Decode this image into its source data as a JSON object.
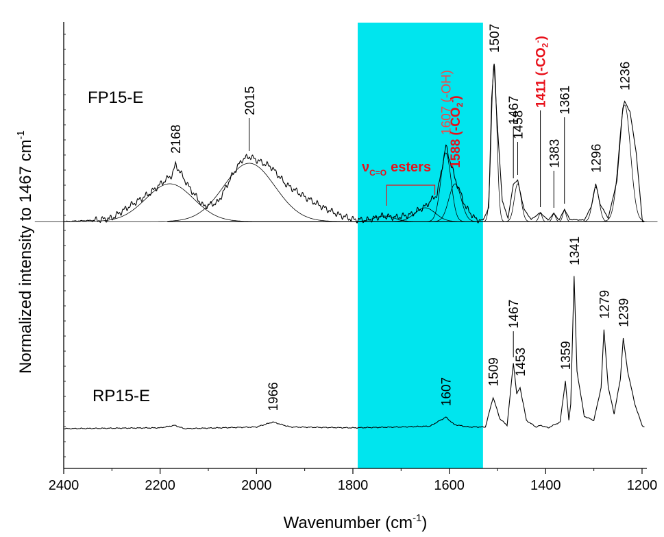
{
  "chart_data": {
    "type": "line",
    "xlabel": "Wavenumber (cm",
    "xlabel_sup": "-1",
    "xlabel_tail": ")",
    "ylabel": "Normalized intensity to 1467 cm",
    "ylabel_sup": "-1",
    "xlim": [
      2400,
      1190
    ],
    "x_ticks": [
      2400,
      2200,
      2000,
      1800,
      1600,
      1400,
      1200
    ],
    "x_tick_labels": [
      "2400",
      "2200",
      "2000",
      "1800",
      "1600",
      "1400",
      "1200"
    ],
    "y_tick_labels": false,
    "highlight_band": {
      "from": 1790,
      "to": 1530,
      "color": "#00e5ee"
    },
    "colors": {
      "line": "#000000",
      "accent": "#e8101a",
      "accent_light": "#f04848"
    },
    "series": [
      {
        "name": "FP15-E",
        "baseline": 0,
        "points": [
          [
            2400,
            0
          ],
          [
            2330,
            0.02
          ],
          [
            2300,
            0.05
          ],
          [
            2260,
            0.24
          ],
          [
            2220,
            0.42
          ],
          [
            2190,
            0.6
          ],
          [
            2175,
            0.68
          ],
          [
            2168,
            0.83
          ],
          [
            2160,
            0.74
          ],
          [
            2140,
            0.5
          ],
          [
            2110,
            0.22
          ],
          [
            2080,
            0.28
          ],
          [
            2050,
            0.68
          ],
          [
            2030,
            0.9
          ],
          [
            2015,
            0.95
          ],
          [
            1995,
            0.88
          ],
          [
            1970,
            0.8
          ],
          [
            1940,
            0.55
          ],
          [
            1900,
            0.36
          ],
          [
            1860,
            0.2
          ],
          [
            1830,
            0.1
          ],
          [
            1800,
            0.03
          ],
          [
            1770,
            0.02
          ],
          [
            1740,
            0.08
          ],
          [
            1710,
            0.06
          ],
          [
            1680,
            0.1
          ],
          [
            1650,
            0.22
          ],
          [
            1625,
            0.4
          ],
          [
            1607,
            1.1
          ],
          [
            1595,
            0.8
          ],
          [
            1588,
            0.62
          ],
          [
            1565,
            0.2
          ],
          [
            1545,
            0.03
          ],
          [
            1530,
            0.02
          ],
          [
            1518,
            0.2
          ],
          [
            1512,
            1.8
          ],
          [
            1507,
            2.3
          ],
          [
            1502,
            1.6
          ],
          [
            1490,
            0.3
          ],
          [
            1478,
            0.05
          ],
          [
            1467,
            0.55
          ],
          [
            1458,
            0.6
          ],
          [
            1445,
            0.18
          ],
          [
            1430,
            0.03
          ],
          [
            1411,
            0.13
          ],
          [
            1395,
            0.02
          ],
          [
            1383,
            0.12
          ],
          [
            1372,
            0.02
          ],
          [
            1361,
            0.18
          ],
          [
            1350,
            0.03
          ],
          [
            1320,
            0.02
          ],
          [
            1305,
            0.22
          ],
          [
            1296,
            0.55
          ],
          [
            1287,
            0.25
          ],
          [
            1270,
            0.05
          ],
          [
            1252,
            0.6
          ],
          [
            1240,
            1.65
          ],
          [
            1236,
            1.75
          ],
          [
            1225,
            1.6
          ],
          [
            1212,
            1.0
          ],
          [
            1200,
            0.05
          ]
        ],
        "fit_components": [
          {
            "center": 2180,
            "height": 0.55,
            "width": 70
          },
          {
            "center": 2015,
            "height": 0.85,
            "width": 75
          },
          {
            "center": 1735,
            "height": 0.08,
            "width": 30
          },
          {
            "center": 1650,
            "height": 0.2,
            "width": 30
          },
          {
            "center": 1607,
            "height": 1.0,
            "width": 15
          },
          {
            "center": 1588,
            "height": 0.55,
            "width": 18
          },
          {
            "center": 1507,
            "height": 2.3,
            "width": 8
          },
          {
            "center": 1458,
            "height": 0.55,
            "width": 10
          },
          {
            "center": 1411,
            "height": 0.12,
            "width": 5
          },
          {
            "center": 1383,
            "height": 0.11,
            "width": 5
          },
          {
            "center": 1361,
            "height": 0.16,
            "width": 5
          },
          {
            "center": 1296,
            "height": 0.5,
            "width": 10
          },
          {
            "center": 1236,
            "height": 1.7,
            "width": 17
          }
        ]
      },
      {
        "name": "RP15-E",
        "baseline": 0,
        "points": [
          [
            2400,
            0
          ],
          [
            2200,
            0.01
          ],
          [
            2170,
            0.04
          ],
          [
            2150,
            0
          ],
          [
            2000,
            0.02
          ],
          [
            1966,
            0.08
          ],
          [
            1930,
            0.02
          ],
          [
            1800,
            0.01
          ],
          [
            1700,
            0.02
          ],
          [
            1640,
            0.03
          ],
          [
            1607,
            0.14
          ],
          [
            1590,
            0.05
          ],
          [
            1560,
            0.02
          ],
          [
            1525,
            0.02
          ],
          [
            1509,
            0.38
          ],
          [
            1495,
            0.12
          ],
          [
            1480,
            0.04
          ],
          [
            1467,
            0.8
          ],
          [
            1460,
            0.42
          ],
          [
            1453,
            0.5
          ],
          [
            1440,
            0.1
          ],
          [
            1420,
            0.02
          ],
          [
            1410,
            0.04
          ],
          [
            1395,
            0.01
          ],
          [
            1370,
            0.08
          ],
          [
            1359,
            0.58
          ],
          [
            1352,
            0.1
          ],
          [
            1348,
            0.3
          ],
          [
            1341,
            1.85
          ],
          [
            1335,
            0.7
          ],
          [
            1320,
            0.15
          ],
          [
            1300,
            0.1
          ],
          [
            1285,
            0.5
          ],
          [
            1279,
            1.2
          ],
          [
            1270,
            0.5
          ],
          [
            1258,
            0.18
          ],
          [
            1245,
            0.6
          ],
          [
            1239,
            1.1
          ],
          [
            1230,
            0.7
          ],
          [
            1215,
            0.3
          ],
          [
            1200,
            0.04
          ],
          [
            1195,
            0.02
          ]
        ]
      }
    ],
    "peak_labels": [
      {
        "series": 0,
        "x": 2168,
        "text": "2168",
        "color": "#000000",
        "bold": false
      },
      {
        "series": 0,
        "x": 2015,
        "text": "2015",
        "color": "#000000",
        "bold": false
      },
      {
        "series": 0,
        "x": 1607,
        "text": "1607 (-OH)",
        "color": "#f04848",
        "bold": false
      },
      {
        "series": 0,
        "x": 1588,
        "text": "1588 (-CO",
        "sub": "2",
        "sup": "-",
        "tail": ")",
        "color": "#e8101a",
        "bold": true
      },
      {
        "series": 0,
        "x": 1507,
        "text": "1507",
        "color": "#000000",
        "bold": false
      },
      {
        "series": 0,
        "x": 1467,
        "text": "1467",
        "color": "#000000",
        "bold": false
      },
      {
        "series": 0,
        "x": 1458,
        "text": "1458",
        "color": "#000000",
        "bold": false
      },
      {
        "series": 0,
        "x": 1411,
        "text": "1411 (-CO",
        "sub": "2",
        "sup": "-",
        "tail": ")",
        "color": "#e8101a",
        "bold": true
      },
      {
        "series": 0,
        "x": 1383,
        "text": "1383",
        "color": "#000000",
        "bold": false
      },
      {
        "series": 0,
        "x": 1361,
        "text": "1361",
        "color": "#000000",
        "bold": false
      },
      {
        "series": 0,
        "x": 1296,
        "text": "1296",
        "color": "#000000",
        "bold": false
      },
      {
        "series": 0,
        "x": 1236,
        "text": "1236",
        "color": "#000000",
        "bold": false
      },
      {
        "series": 1,
        "x": 1966,
        "text": "1966",
        "color": "#000000",
        "bold": false
      },
      {
        "series": 1,
        "x": 1607,
        "text": "1607",
        "color": "#000000",
        "bold": false
      },
      {
        "series": 1,
        "x": 1509,
        "text": "1509",
        "color": "#000000",
        "bold": false
      },
      {
        "series": 1,
        "x": 1467,
        "text": "1467",
        "color": "#000000",
        "bold": false
      },
      {
        "series": 1,
        "x": 1453,
        "text": "1453",
        "color": "#000000",
        "bold": false
      },
      {
        "series": 1,
        "x": 1359,
        "text": "1359",
        "color": "#000000",
        "bold": false
      },
      {
        "series": 1,
        "x": 1341,
        "text": "1341",
        "color": "#000000",
        "bold": false
      },
      {
        "series": 1,
        "x": 1279,
        "text": "1279",
        "color": "#000000",
        "bold": false
      },
      {
        "series": 1,
        "x": 1239,
        "text": "1239",
        "color": "#000000",
        "bold": false
      }
    ],
    "esters_annotation": {
      "symbol": "ν",
      "subscript": "C=O",
      "text": "esters",
      "from": 1730,
      "to": 1630,
      "color": "#e8101a"
    }
  }
}
